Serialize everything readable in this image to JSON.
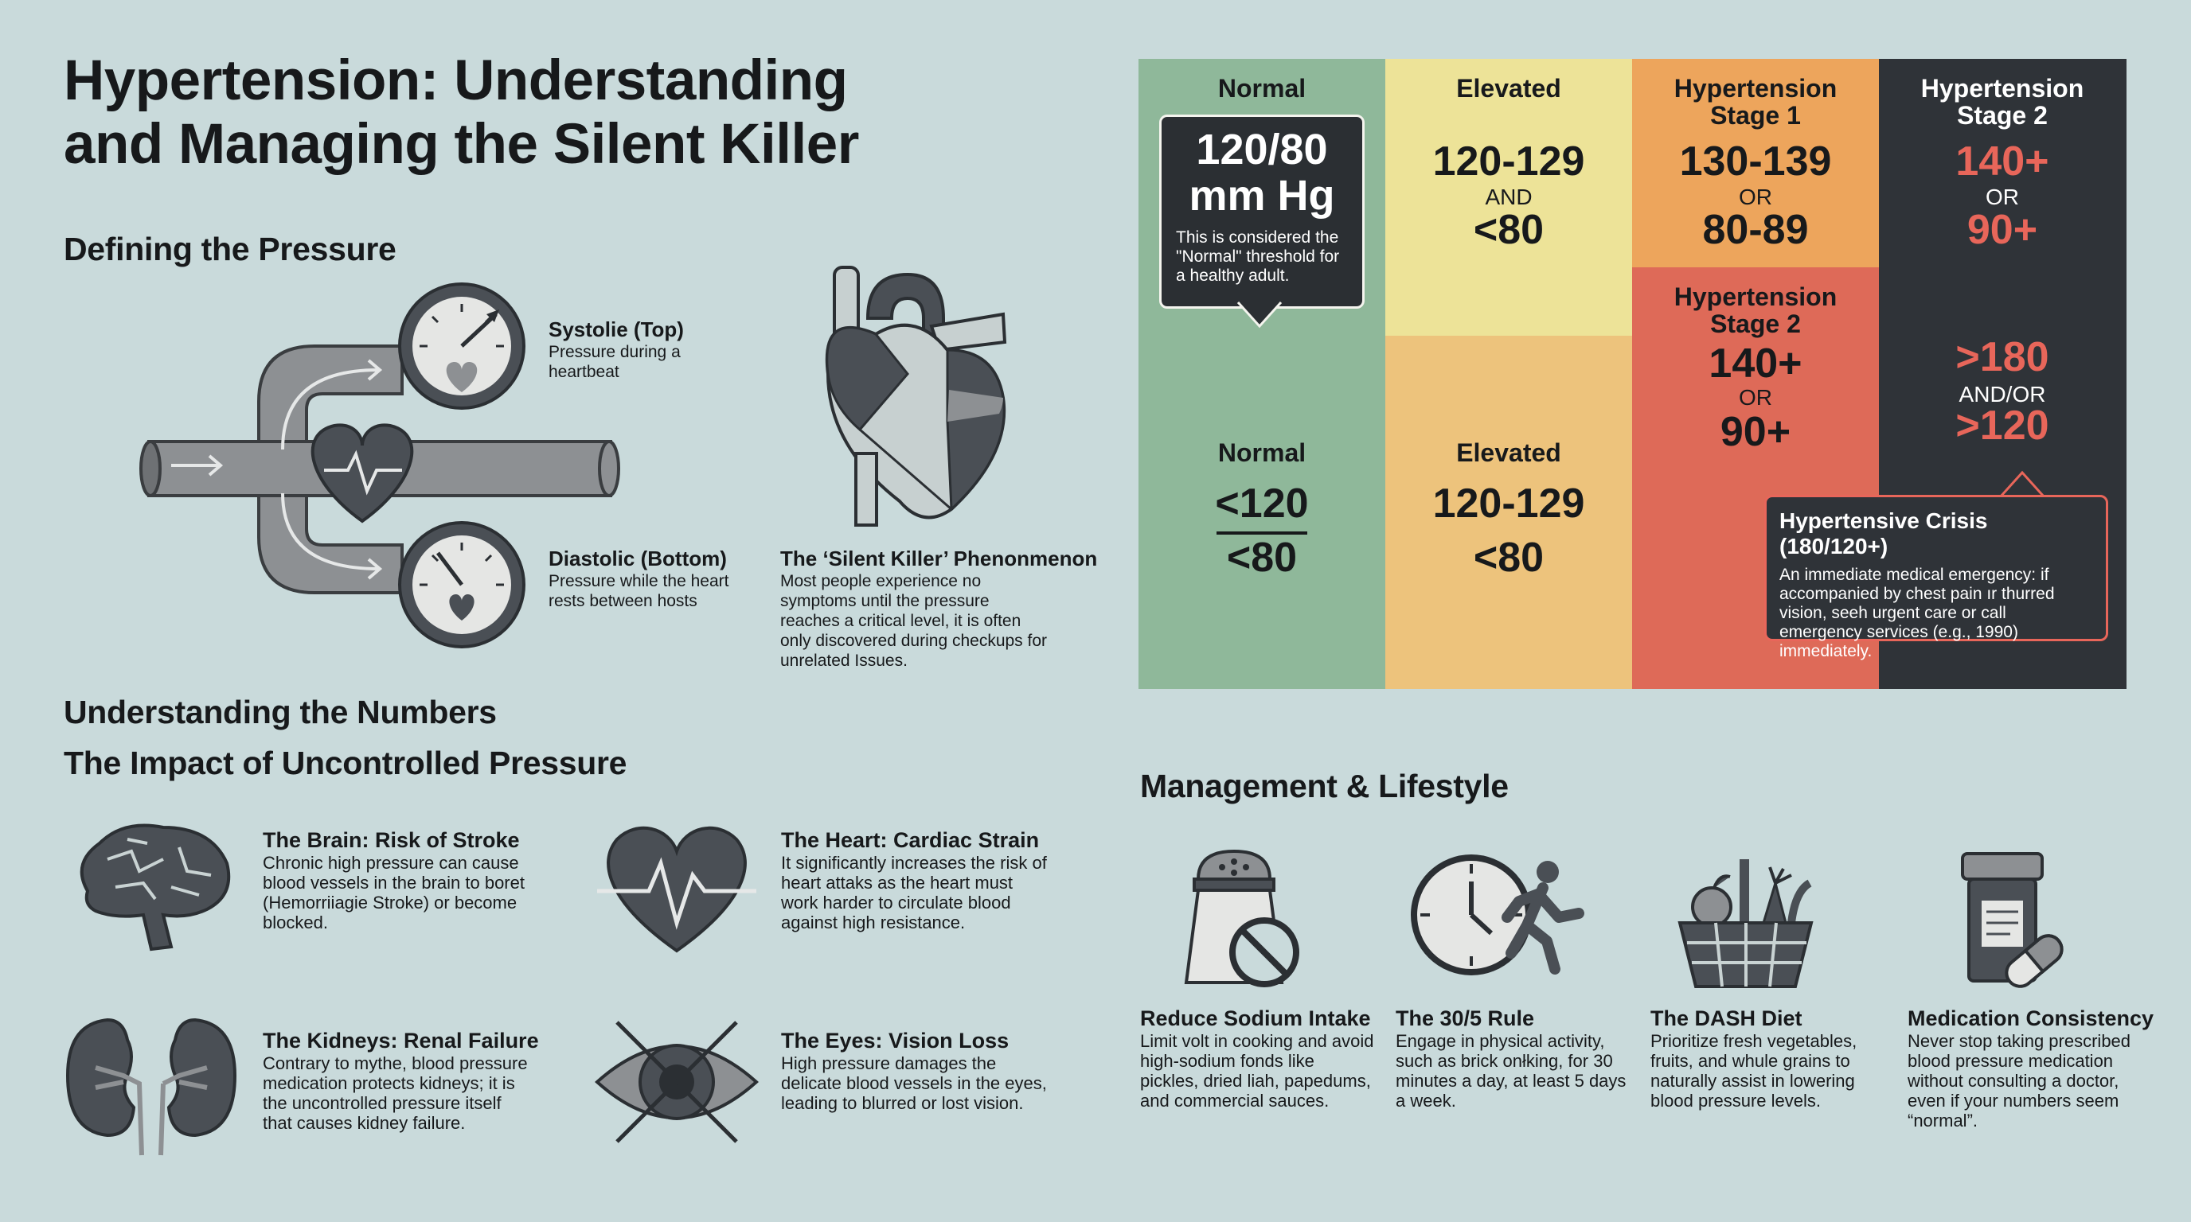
{
  "title_line1": "Hypertension: Understanding",
  "title_line2": "and Managing the Silent Killer",
  "defining": {
    "heading": "Defining the Pressure",
    "systolic_title": "Systolie (Top)",
    "systolic_desc": "Pressure during a heartbeat",
    "diastolic_title": "Diastolic (Bottom)",
    "diastolic_desc": "Pressure while the heart rests between hosts",
    "silent_title": "The ‘Silent Killer’ Phenonmenon",
    "silent_desc": "Most people experience no symptoms until the pressure reaches a critical level, it is often only discovered during checkups for unrelated Issues."
  },
  "numbers_heading": "Understanding the Numbers",
  "impact": {
    "heading": "The Impact of Uncontrolled Pressure",
    "items": [
      {
        "title": "The Brain: Risk of Stroke",
        "desc": "Chronic high pressure can cause blood vessels in the brain to boret (Hemorriiagie Stroke) or become blocked.",
        "icon": "brain-icon"
      },
      {
        "title": "The Heart: Cardiac Strain",
        "desc": "It significantly increases the risk of heart attaks as the heart must work harder to circulate blood against high resistance.",
        "icon": "heart-pulse-icon"
      },
      {
        "title": "The Kidneys: Renal Failure",
        "desc": "Contrary to mythe, blood pressure medication protects kidneys; it is the uncontrolled pressure itself that causes kidney failure.",
        "icon": "kidneys-icon"
      },
      {
        "title": "The Eyes: Vision Loss",
        "desc": "High pressure damages the delicate blood vessels in the eyes, leading to blurred or lost vision.",
        "icon": "crossed-eye-icon"
      }
    ]
  },
  "chart": {
    "colors": {
      "normal": "#8fb89a",
      "elevated_top": "#ede398",
      "elevated_bottom": "#edc37c",
      "stage1": "#eda55c",
      "stage2_mid": "#de6a58",
      "stage2_dark": "#2f3338",
      "crisis_text": "#e8665a"
    },
    "normal_header": "Normal",
    "normal_bubble_value_1": "120/80",
    "normal_bubble_value_2": "mm Hg",
    "normal_bubble_note": "This is considered the \"Normal\" threshold for a healthy adult.",
    "normal_label": "Normal",
    "normal_systolic": "<120",
    "normal_diastolic": "<80",
    "elevated_header": "Elevated",
    "elevated_top_systolic": "120-129",
    "elevated_top_joiner": "AND",
    "elevated_top_diastolic": "<80",
    "elevated_label": "Elevated",
    "elevated_systolic": "120-129",
    "elevated_diastolic": "<80",
    "stage1_header_1": "Hypertension",
    "stage1_header_2": "Stage 1",
    "stage1_systolic": "130-139",
    "stage1_joiner": "OR",
    "stage1_diastolic": "80-89",
    "stage2_mid_header_1": "Hypertension",
    "stage2_mid_header_2": "Stage 2",
    "stage2_mid_systolic": "140+",
    "stage2_mid_joiner": "OR",
    "stage2_mid_diastolic": "90+",
    "stage2_header_1": "Hypertension",
    "stage2_header_2": "Stage 2",
    "stage2_systolic": "140+",
    "stage2_joiner": "OR",
    "stage2_diastolic": "90+",
    "crisis_systolic": ">180",
    "crisis_joiner": "AND/OR",
    "crisis_diastolic": ">120",
    "crisis_title": "Hypertensive Crisis (180/120+)",
    "crisis_desc": "An immediate medical emergency: if accompanied by chest pain ır thurred vision, seeh urgent care or call emergency services (e.g., 1990) immediately."
  },
  "management": {
    "heading": "Management & Lifestyle",
    "items": [
      {
        "title": "Reduce Sodium Intake",
        "desc": "Limit volt in cooking and avoid high-sodium fonds like pickles, dried liah, papedums, and commercial sauces.",
        "icon": "salt-shaker-icon"
      },
      {
        "title": "The 30/5 Rule",
        "desc": "Engage in physical activity, such as brick onłking, for 30 minutes a day, at least 5 days a week.",
        "icon": "clock-runner-icon"
      },
      {
        "title": "The DASH Diet",
        "desc": "Prioritize fresh vegetables, fruits, and whule grains to naturally assist in lowering blood pressure levels.",
        "icon": "food-basket-icon"
      },
      {
        "title": "Medication Consistency",
        "desc": "Never stop taking prescribed blood pressure medication without consulting a doctor, even if your numbers seem “normal”.",
        "icon": "pill-bottle-icon"
      }
    ]
  }
}
